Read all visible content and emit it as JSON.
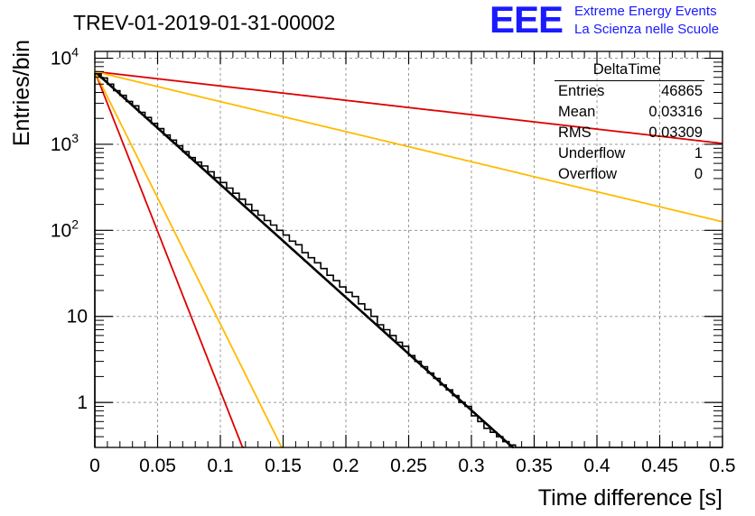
{
  "chart_data": {
    "type": "histogram",
    "title": "TREV-01-2019-01-31-00002",
    "xlabel": "Time difference [s]",
    "ylabel": "Entries/bin",
    "xlim": [
      0,
      0.5
    ],
    "ylim": [
      0.3,
      12000
    ],
    "yscale": "log",
    "grid": true,
    "x_ticks": [
      "0",
      "0.05",
      "0.1",
      "0.15",
      "0.2",
      "0.25",
      "0.3",
      "0.35",
      "0.4",
      "0.45",
      "0.5"
    ],
    "y_ticks": [
      {
        "value": 1,
        "base": "1",
        "exp": ""
      },
      {
        "value": 10,
        "base": "10",
        "exp": ""
      },
      {
        "value": 100,
        "base": "10",
        "exp": "2"
      },
      {
        "value": 1000,
        "base": "10",
        "exp": "3"
      },
      {
        "value": 10000,
        "base": "10",
        "exp": "4"
      }
    ],
    "bin_width": 0.005,
    "histogram_counts": [
      6600,
      5900,
      5000,
      4200,
      3700,
      3150,
      2800,
      2350,
      2050,
      1750,
      1520,
      1280,
      1120,
      960,
      820,
      700,
      620,
      560,
      480,
      410,
      360,
      310,
      270,
      230,
      200,
      170,
      150,
      130,
      115,
      100,
      88,
      75,
      68,
      55,
      48,
      42,
      36,
      30,
      26,
      22,
      19,
      17,
      14,
      12,
      10,
      8,
      7,
      6,
      5,
      4.5,
      3.5,
      3,
      2.6,
      2.2,
      1.9,
      1.6,
      1.4,
      1.2,
      1,
      0.9,
      0.7,
      0.6,
      0.5,
      0.45,
      0.4,
      0.35,
      0.32,
      0.3,
      0.3,
      0.3,
      0.3,
      0.3,
      0.3,
      0.3,
      0.3,
      0.3,
      0.3,
      0.3,
      0.3,
      0.3,
      0.3,
      0.3,
      0.3,
      0.3,
      0.3,
      0.3,
      0.3,
      0.3,
      0.3,
      0.3,
      0.3,
      0.3,
      0.3,
      0.3,
      0.3,
      0.3,
      0.3,
      0.3,
      0.3,
      0.3
    ],
    "series": [
      {
        "color": "#000000",
        "style": "histogram"
      },
      {
        "color": "#000000",
        "style": "exponential fit",
        "A": 7000,
        "tau": 0.0331
      },
      {
        "color": "#dd0000",
        "style": "exponential",
        "A": 7000,
        "tau": 0.0117
      },
      {
        "color": "#dd0000",
        "style": "exponential",
        "A": 7000,
        "tau": 0.26
      },
      {
        "color": "#ffbb00",
        "style": "exponential",
        "A": 7000,
        "tau": 0.0148
      },
      {
        "color": "#ffbb00",
        "style": "exponential",
        "A": 7000,
        "tau": 0.1244
      }
    ],
    "stats": {
      "title": "DeltaTime",
      "rows": [
        {
          "label": "Entries",
          "value": "46865"
        },
        {
          "label": "Mean",
          "value": "0.03316"
        },
        {
          "label": "RMS",
          "value": "0.03309"
        },
        {
          "label": "Underflow",
          "value": "1"
        },
        {
          "label": "Overflow",
          "value": "0"
        }
      ]
    }
  },
  "brand": {
    "logo": "EEE",
    "line1": "Extreme Energy Events",
    "line2": "La Scienza nelle Scuole",
    "color": "#1a1aff"
  }
}
